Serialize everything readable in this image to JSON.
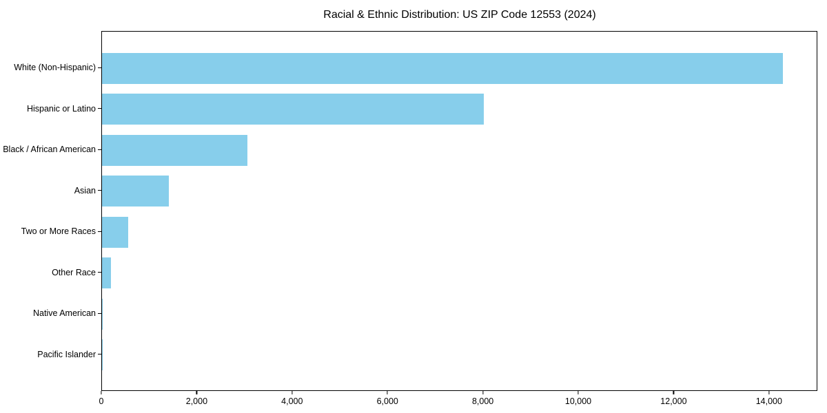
{
  "title": "Racial & Ethnic Distribution: US ZIP Code 12553 (2024)",
  "chart_data": {
    "type": "bar",
    "orientation": "horizontal",
    "title": "Racial & Ethnic Distribution: US ZIP Code 12553 (2024)",
    "categories": [
      "White (Non-Hispanic)",
      "Hispanic or Latino",
      "Black / African American",
      "Asian",
      "Two or More Races",
      "Other Race",
      "Native American",
      "Pacific Islander"
    ],
    "values": [
      14270,
      8000,
      3050,
      1400,
      550,
      190,
      20,
      5
    ],
    "xlabel": "",
    "ylabel": "",
    "xlim": [
      0,
      14985
    ],
    "x_ticks": [
      0,
      2000,
      4000,
      6000,
      8000,
      10000,
      12000,
      14000
    ],
    "x_tick_labels": [
      "0",
      "2,000",
      "4,000",
      "6,000",
      "8,000",
      "10,000",
      "12,000",
      "14,000"
    ],
    "bar_color": "#87CEEB",
    "axis_color": "#000000",
    "background_color": "#ffffff",
    "grid": false,
    "legend": null
  }
}
